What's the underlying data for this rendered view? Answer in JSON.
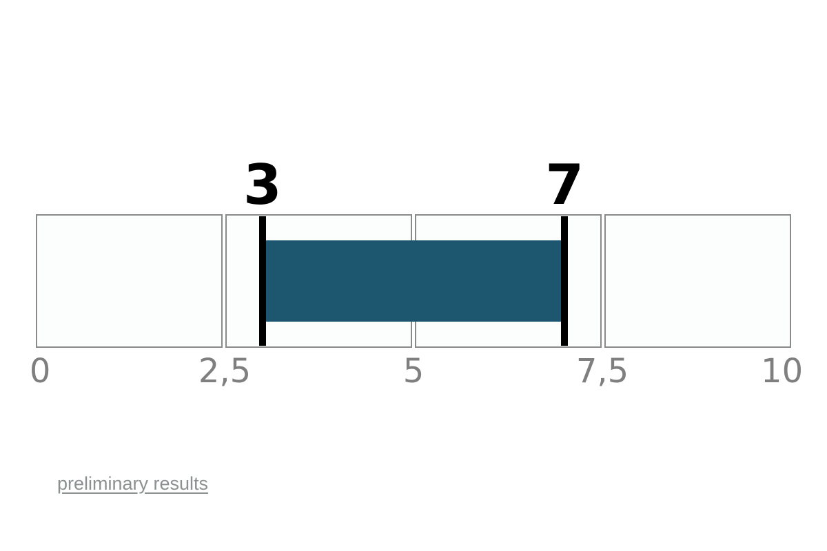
{
  "chart_data": {
    "type": "bar",
    "subtype": "horizontal-range-scale",
    "orientation": "horizontal",
    "title": "",
    "axis": {
      "min": 0,
      "max": 10,
      "ticks": [
        {
          "value": 0,
          "label": "0"
        },
        {
          "value": 2.5,
          "label": "2,5"
        },
        {
          "value": 5,
          "label": "5"
        },
        {
          "value": 7.5,
          "label": "7,5"
        },
        {
          "value": 10,
          "label": "10"
        }
      ]
    },
    "segments": [
      {
        "from": 0,
        "to": 2.5
      },
      {
        "from": 2.5,
        "to": 5
      },
      {
        "from": 5,
        "to": 7.5
      },
      {
        "from": 7.5,
        "to": 10
      }
    ],
    "range": {
      "start": 3,
      "end": 7
    },
    "markers": [
      {
        "value": 3,
        "label": "3"
      },
      {
        "value": 7,
        "label": "7"
      }
    ],
    "grid": false,
    "legend": false
  },
  "footer": {
    "link_label": "preliminary results"
  },
  "colors": {
    "range_bar": "#1d566f",
    "marker": "#000000",
    "marker_label": "#000000",
    "tick_label": "#7f7f7f",
    "segment_fill": "#fbfefd",
    "segment_border": "#8a8a8a",
    "link": "#8a9190",
    "background": "#ffffff"
  }
}
